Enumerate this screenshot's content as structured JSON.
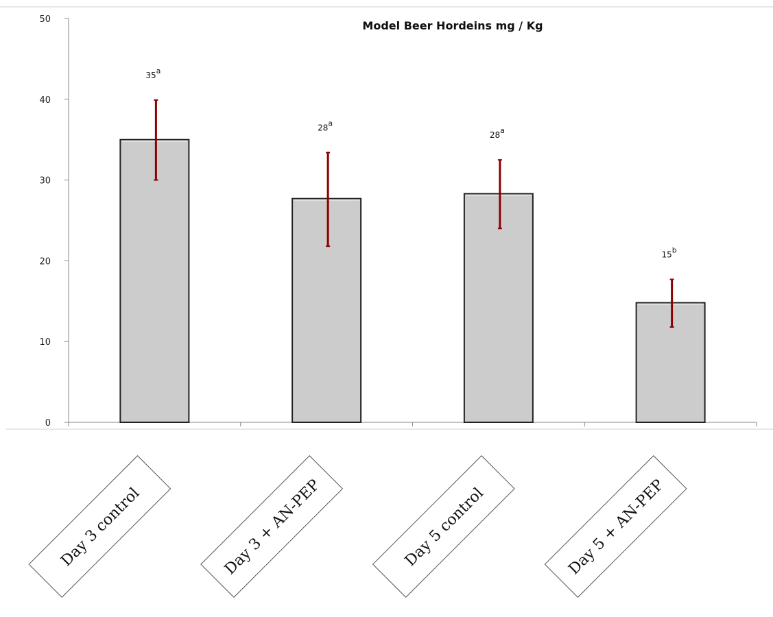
{
  "chart_data": {
    "type": "bar",
    "title": "Model Beer Hordeins mg / Kg",
    "categories": [
      "Day 3 control",
      "Day 3 + AN-PEP",
      "Day 5 control",
      "Day 5 + AN-PEP"
    ],
    "values": [
      35,
      27.7,
      28.3,
      14.8
    ],
    "error_low": [
      30,
      21.8,
      24,
      11.8
    ],
    "error_high": [
      39.9,
      33.4,
      32.5,
      17.7
    ],
    "data_labels": [
      "35",
      "28",
      "28",
      "15"
    ],
    "significance": [
      "a",
      "a",
      "a",
      "b"
    ],
    "ylim": [
      0,
      50
    ],
    "yticks": [
      0,
      10,
      20,
      30,
      40,
      50
    ],
    "xlabel": "",
    "ylabel": "",
    "grid": false,
    "colors": {
      "bar_fill": "#cccccc",
      "bar_stroke": "#222222",
      "error_bar": "#8b0000",
      "axis": "#888888"
    }
  }
}
